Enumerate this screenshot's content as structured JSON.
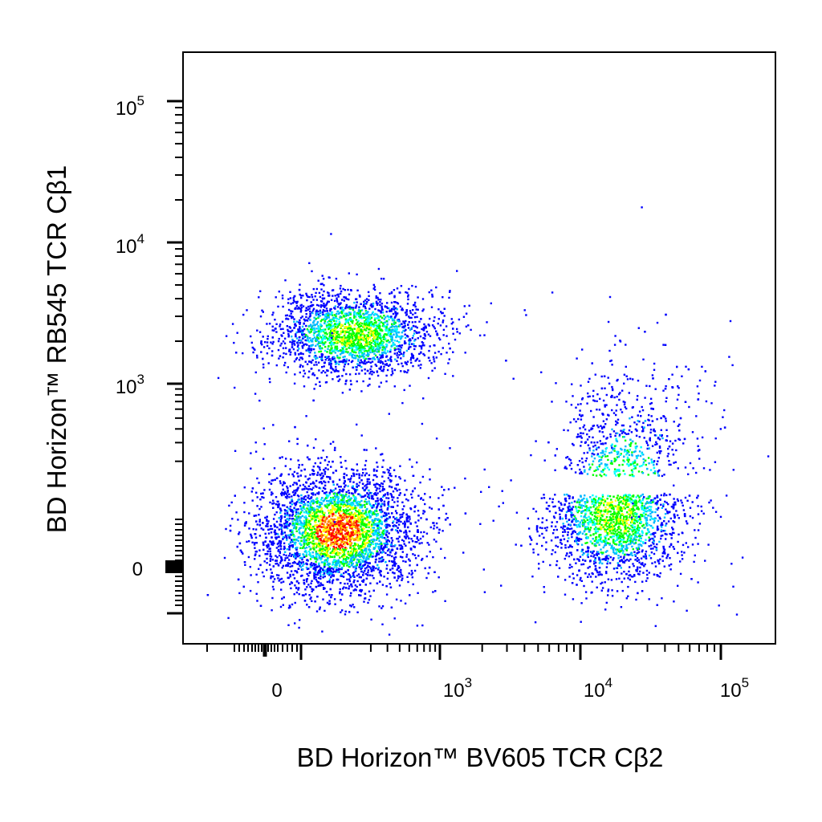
{
  "chart_data": {
    "type": "scatter",
    "style": "flow cytometry biexponential pseudocolor density dot plot",
    "xlabel": "BD Horizon™ BV605 TCR Cβ2",
    "ylabel": "BD Horizon™ RB545 TCR Cβ1",
    "x_axis": {
      "scale": "biexponential",
      "tick_labels": [
        {
          "value": 0,
          "base": "0",
          "exp": ""
        },
        {
          "value": 1000,
          "base": "10",
          "exp": "3"
        },
        {
          "value": 10000,
          "base": "10",
          "exp": "4"
        },
        {
          "value": 100000,
          "base": "10",
          "exp": "5"
        }
      ],
      "range": [
        -300,
        200000
      ]
    },
    "y_axis": {
      "scale": "biexponential",
      "tick_labels": [
        {
          "value": 0,
          "base": "0",
          "exp": ""
        },
        {
          "value": 1000,
          "base": "10",
          "exp": "3"
        },
        {
          "value": 10000,
          "base": "10",
          "exp": "4"
        },
        {
          "value": 100000,
          "base": "10",
          "exp": "5"
        }
      ],
      "range": [
        -200,
        200000
      ]
    },
    "grid": false,
    "legend": "none",
    "density_colors": [
      "#0000ff",
      "#00b8ff",
      "#00ffff",
      "#00ff00",
      "#ffff00",
      "#ff8000",
      "#ff0000"
    ],
    "populations": [
      {
        "id": "cb2-neg-cb1-neg",
        "x_center": 170,
        "y_center": 120,
        "relative_density": 1.0
      },
      {
        "id": "cb2-neg-cb1-pos",
        "x_center": 230,
        "y_center": 2200,
        "relative_density": 0.55
      },
      {
        "id": "cb2-pos-cb1-neg",
        "x_center": 15000,
        "y_center": 150,
        "relative_density": 0.6
      }
    ]
  }
}
